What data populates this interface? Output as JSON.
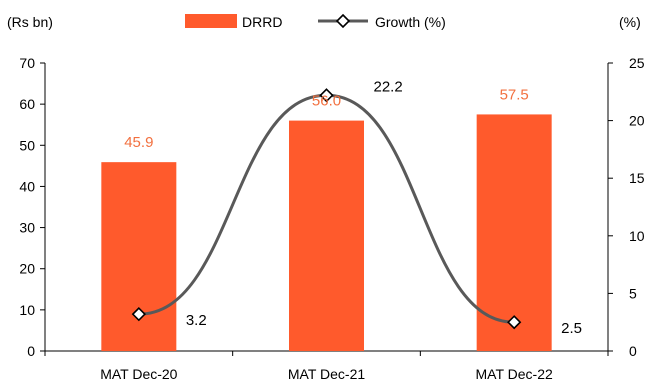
{
  "chart_data": {
    "type": "bar",
    "categories": [
      "MAT Dec-20",
      "MAT Dec-21",
      "MAT Dec-22"
    ],
    "series": [
      {
        "name": "DRRD",
        "kind": "bar",
        "axis": "left",
        "values": [
          45.9,
          56.0,
          57.5
        ],
        "color": "#FF5A2C",
        "label_color": "#F2703F"
      },
      {
        "name": "Growth (%)",
        "kind": "line",
        "axis": "right",
        "values": [
          3.2,
          22.2,
          2.5
        ],
        "color": "#595959",
        "marker": "diamond"
      }
    ],
    "y_left": {
      "unit_label": "(Rs bn)",
      "lim": [
        0,
        70
      ],
      "ticks": [
        0,
        10,
        20,
        30,
        40,
        50,
        60,
        70
      ]
    },
    "y_right": {
      "unit_label": "(%)",
      "lim": [
        0,
        25
      ],
      "ticks": [
        0,
        5,
        10,
        15,
        20,
        25
      ]
    },
    "data_labels": {
      "bars": [
        "45.9",
        "56.0",
        "57.5"
      ],
      "line": [
        "3.2",
        "22.2",
        "2.5"
      ]
    },
    "legend_position": "top-center",
    "grid": false
  }
}
